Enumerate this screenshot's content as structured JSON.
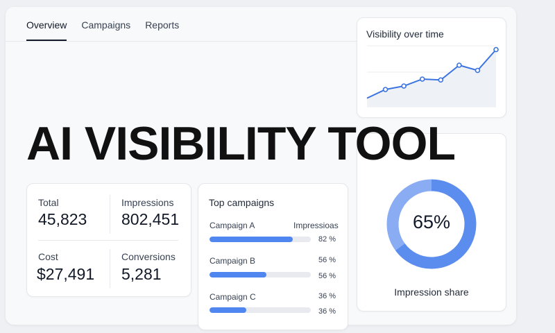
{
  "nav": {
    "tabs": [
      "Overview",
      "Campaigns",
      "Reports"
    ]
  },
  "hero": {
    "title": "AI VISIBILITY TOOL"
  },
  "stats": {
    "total_label": "Total",
    "total_value": "45,823",
    "impressions_label": "Impressions",
    "impressions_value": "802,451",
    "cost_label": "Cost",
    "cost_value": "$27,491",
    "conversions_label": "Conversions",
    "conversions_value": "5,281"
  },
  "campaigns": {
    "title": "Top campaigns",
    "column_label": "Impressioas",
    "rows": [
      {
        "name": "Campaign A",
        "bar_pct": 82,
        "pct": "82 %"
      },
      {
        "name": "Campaign B",
        "bar_pct": 56,
        "pct": "56 %",
        "pct2": "56 %"
      },
      {
        "name": "Campaign C",
        "bar_pct": 36,
        "pct": "36 %",
        "pct2": "36 %"
      }
    ]
  },
  "chart_data": [
    {
      "type": "line",
      "title": "Visibility over time",
      "values": [
        10,
        20,
        24,
        32,
        31,
        48,
        42,
        66
      ],
      "ylim": [
        0,
        80
      ],
      "color": "#3b73e0"
    },
    {
      "type": "pie",
      "title": "",
      "center_label": "65%",
      "caption": "Impression share",
      "values": [
        65,
        35
      ],
      "colors": [
        "#5b8def",
        "#8aacf3"
      ]
    }
  ]
}
